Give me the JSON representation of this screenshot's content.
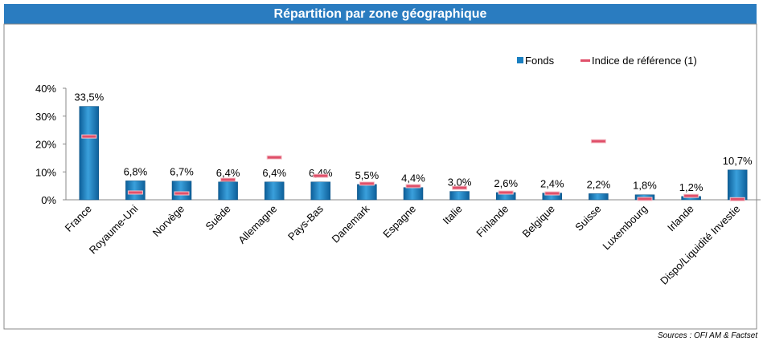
{
  "chart_data": {
    "type": "bar",
    "title": "Répartition par zone géographique",
    "source": "Sources : OFI AM & Factset",
    "categories": [
      "France",
      "Royaume-Uni",
      "Norvège",
      "Suède",
      "Allemagne",
      "Pays-Bas",
      "Danemark",
      "Espagne",
      "Italie",
      "Finlande",
      "Belgique",
      "Suisse",
      "Luxembourg",
      "Irlande",
      "Dispo/Liquidité Investie"
    ],
    "series": [
      {
        "name": "Fonds",
        "color": "#1a7fc1",
        "values": [
          33.5,
          6.8,
          6.7,
          6.4,
          6.4,
          6.4,
          5.5,
          4.4,
          3.0,
          2.6,
          2.4,
          2.2,
          1.8,
          1.2,
          10.7
        ],
        "value_labels": [
          "33,5%",
          "6,8%",
          "6,7%",
          "6,4%",
          "6,4%",
          "6,4%",
          "5,5%",
          "4,4%",
          "3,0%",
          "2,6%",
          "2,4%",
          "2,2%",
          "1,8%",
          "1,2%",
          "10,7%"
        ]
      },
      {
        "name": "Indice de référence (1)",
        "color": "#e0506a",
        "values": [
          22.7,
          2.6,
          2.3,
          7.2,
          15.2,
          8.6,
          5.8,
          4.9,
          4.3,
          2.6,
          2.3,
          21.0,
          0.3,
          1.4,
          0.2
        ]
      }
    ],
    "ylim": [
      0,
      40
    ],
    "yticks": [
      {
        "value": 0,
        "label": "0%"
      },
      {
        "value": 10,
        "label": "10%"
      },
      {
        "value": 20,
        "label": "20%"
      },
      {
        "value": 30,
        "label": "30%"
      },
      {
        "value": 40,
        "label": "40%"
      }
    ]
  }
}
